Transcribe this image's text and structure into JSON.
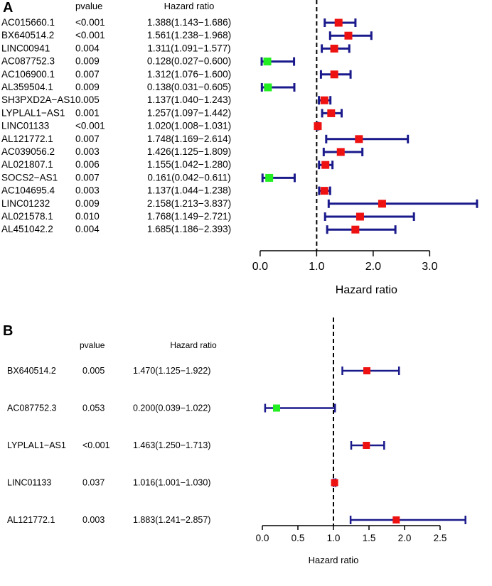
{
  "colors": {
    "ci_line": "#1a1a8c",
    "risk_marker": "#ee1111",
    "protective_marker": "#22ee22",
    "axis": "#000000"
  },
  "chart_data": [
    {
      "panel": "A",
      "type": "forest",
      "headers": {
        "pvalue": "pvalue",
        "hazard_ratio": "Hazard ratio"
      },
      "xlabel": "Hazard ratio",
      "xlim": [
        -0.25,
        3.75
      ],
      "xticks": [
        0.0,
        1.0,
        2.0,
        3.0
      ],
      "xtick_labels": [
        "0.0",
        "1.0",
        "2.0",
        "3.0"
      ],
      "reference_line": 1.0,
      "rows": [
        {
          "name": "AC015660.1",
          "pvalue": "<0.001",
          "hr_text": "1.388(1.143−1.686)",
          "hr": 1.388,
          "lo": 1.143,
          "hi": 1.686
        },
        {
          "name": "BX640514.2",
          "pvalue": "<0.001",
          "hr_text": "1.561(1.238−1.968)",
          "hr": 1.561,
          "lo": 1.238,
          "hi": 1.968
        },
        {
          "name": "LINC00941",
          "pvalue": "0.004",
          "hr_text": "1.311(1.091−1.577)",
          "hr": 1.311,
          "lo": 1.091,
          "hi": 1.577
        },
        {
          "name": "AC087752.3",
          "pvalue": "0.009",
          "hr_text": "0.128(0.027−0.600)",
          "hr": 0.128,
          "lo": 0.027,
          "hi": 0.6
        },
        {
          "name": "AC106900.1",
          "pvalue": "0.007",
          "hr_text": "1.312(1.076−1.600)",
          "hr": 1.312,
          "lo": 1.076,
          "hi": 1.6
        },
        {
          "name": "AL359504.1",
          "pvalue": "0.009",
          "hr_text": "0.138(0.031−0.605)",
          "hr": 0.138,
          "lo": 0.031,
          "hi": 0.605
        },
        {
          "name": "SH3PXD2A−AS1",
          "pvalue": "0.005",
          "hr_text": "1.137(1.040−1.243)",
          "hr": 1.137,
          "lo": 1.04,
          "hi": 1.243
        },
        {
          "name": "LYPLAL1−AS1",
          "pvalue": "0.001",
          "hr_text": "1.257(1.097−1.442)",
          "hr": 1.257,
          "lo": 1.097,
          "hi": 1.442
        },
        {
          "name": "LINC01133",
          "pvalue": "<0.001",
          "hr_text": "1.020(1.008−1.031)",
          "hr": 1.02,
          "lo": 1.008,
          "hi": 1.031
        },
        {
          "name": "AL121772.1",
          "pvalue": "0.007",
          "hr_text": "1.748(1.169−2.614)",
          "hr": 1.748,
          "lo": 1.169,
          "hi": 2.614
        },
        {
          "name": "AC039056.2",
          "pvalue": "0.003",
          "hr_text": "1.426(1.125−1.809)",
          "hr": 1.426,
          "lo": 1.125,
          "hi": 1.809
        },
        {
          "name": "AL021807.1",
          "pvalue": "0.006",
          "hr_text": "1.155(1.042−1.280)",
          "hr": 1.155,
          "lo": 1.042,
          "hi": 1.28
        },
        {
          "name": "SOCS2−AS1",
          "pvalue": "0.007",
          "hr_text": "0.161(0.042−0.611)",
          "hr": 0.161,
          "lo": 0.042,
          "hi": 0.611
        },
        {
          "name": "AC104695.4",
          "pvalue": "0.003",
          "hr_text": "1.137(1.044−1.238)",
          "hr": 1.137,
          "lo": 1.044,
          "hi": 1.238
        },
        {
          "name": "LINC01232",
          "pvalue": "0.009",
          "hr_text": "2.158(1.213−3.837)",
          "hr": 2.158,
          "lo": 1.213,
          "hi": 3.837
        },
        {
          "name": "AL021578.1",
          "pvalue": "0.010",
          "hr_text": "1.768(1.149−2.721)",
          "hr": 1.768,
          "lo": 1.149,
          "hi": 2.721
        },
        {
          "name": "AL451042.2",
          "pvalue": "0.004",
          "hr_text": "1.685(1.186−2.393)",
          "hr": 1.685,
          "lo": 1.186,
          "hi": 2.393
        }
      ]
    },
    {
      "panel": "B",
      "type": "forest",
      "headers": {
        "pvalue": "pvalue",
        "hazard_ratio": "Hazard ratio"
      },
      "xlabel": "Hazard ratio",
      "xlim": [
        -0.05,
        2.95
      ],
      "xticks": [
        0.0,
        0.5,
        1.0,
        1.5,
        2.0,
        2.5
      ],
      "xtick_labels": [
        "0.0",
        "0.5",
        "1.0",
        "1.5",
        "2.0",
        "2.5"
      ],
      "reference_line": 1.0,
      "rows": [
        {
          "name": "BX640514.2",
          "pvalue": "0.005",
          "hr_text": "1.470(1.125−1.922)",
          "hr": 1.47,
          "lo": 1.125,
          "hi": 1.922
        },
        {
          "name": "AC087752.3",
          "pvalue": "0.053",
          "hr_text": "0.200(0.039−1.022)",
          "hr": 0.2,
          "lo": 0.039,
          "hi": 1.022
        },
        {
          "name": "LYPLAL1−AS1",
          "pvalue": "<0.001",
          "hr_text": "1.463(1.250−1.713)",
          "hr": 1.463,
          "lo": 1.25,
          "hi": 1.713
        },
        {
          "name": "LINC01133",
          "pvalue": "0.037",
          "hr_text": "1.016(1.001−1.030)",
          "hr": 1.016,
          "lo": 1.001,
          "hi": 1.03
        },
        {
          "name": "AL121772.1",
          "pvalue": "0.003",
          "hr_text": "1.883(1.241−2.857)",
          "hr": 1.883,
          "lo": 1.241,
          "hi": 2.857
        }
      ]
    }
  ]
}
